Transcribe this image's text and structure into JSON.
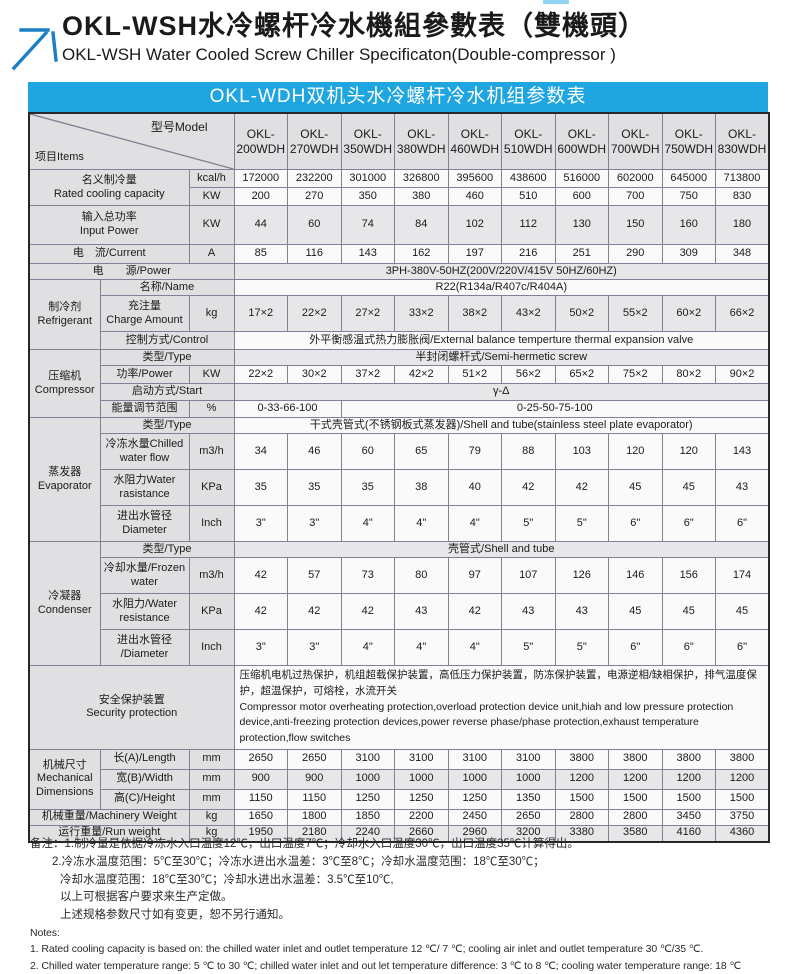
{
  "header": {
    "title_zh": "OKL-WSH水冷螺杆冷水機組參數表（雙機頭）",
    "title_en": "OKL-WSH Water Cooled Screw Chiller Specificaton(Double-compressor )"
  },
  "table": {
    "banner": "OKL-WDH双机头水冷螺杆冷水机组参数表",
    "corner": {
      "items": "项目Items",
      "model": "型号Model"
    },
    "models": [
      "OKL-\n200WDH",
      "OKL-\n270WDH",
      "OKL-\n350WDH",
      "OKL-\n380WDH",
      "OKL-\n460WDH",
      "OKL-\n510WDH",
      "OKL-\n600WDH",
      "OKL-\n700WDH",
      "OKL-\n750WDH",
      "OKL-\n830WDH"
    ],
    "cooling": {
      "label": "名义制冷量\nRated cooling capacity",
      "unit_kcal": "kcal/h",
      "unit_kw": "KW",
      "kcal": [
        172000,
        232200,
        301000,
        326800,
        395600,
        438600,
        516000,
        602000,
        645000,
        713800
      ],
      "kw": [
        200,
        270,
        350,
        380,
        460,
        510,
        600,
        700,
        750,
        830
      ]
    },
    "input_power": {
      "label": "输入总功率\nInput Power",
      "unit": "KW",
      "values": [
        44,
        60,
        74,
        84,
        102,
        112,
        130,
        150,
        160,
        180
      ]
    },
    "current": {
      "label": "电　流/Current",
      "unit": "A",
      "values": [
        85,
        116,
        143,
        162,
        197,
        216,
        251,
        290,
        309,
        348
      ]
    },
    "power_supply": {
      "label": "电　　源/Power",
      "value": "3PH-380V-50HZ(200V/220V/415V  50HZ/60HZ)"
    },
    "refrigerant": {
      "group": "制冷剂\nRefrigerant",
      "name_label": "名称/Name",
      "name_value": "R22(R134a/R407c/R404A)",
      "charge_label": "充注量\nCharge Amount",
      "charge_unit": "kg",
      "charge": [
        "17×2",
        "22×2",
        "27×2",
        "33×2",
        "38×2",
        "43×2",
        "50×2",
        "55×2",
        "60×2",
        "66×2"
      ],
      "control_label": "控制方式/Control",
      "control_value": "外平衡感温式热力膨胀阀/External balance temperture thermal expansion valve"
    },
    "compressor": {
      "group": "压缩机\nCompressor",
      "type_label": "类型/Type",
      "type_value": "半封闭螺杆式/Semi-hermetic screw",
      "power_label": "功率/Power",
      "power_unit": "KW",
      "power": [
        "22×2",
        "30×2",
        "37×2",
        "42×2",
        "51×2",
        "56×2",
        "65×2",
        "75×2",
        "80×2",
        "90×2"
      ],
      "start_label": "启动方式/Start",
      "start_value": "γ-Δ",
      "energy_label": "能量调节范围",
      "energy_unit": "%",
      "energy_value1": "0-33-66-100",
      "energy_value2": "0-25-50-75-100"
    },
    "evaporator": {
      "group": "蒸发器\nEvaporator",
      "type_label": "类型/Type",
      "type_value": "干式壳管式(不锈钢板式蒸发器)/Shell and tube(stainless steel plate evaporator)",
      "flow_label": "冷冻水量Chilled\nwater flow",
      "flow_unit": "m3/h",
      "flow": [
        34,
        46,
        60,
        65,
        79,
        88,
        103,
        120,
        120,
        143
      ],
      "resist_label": "水阻力Water\nrasistance",
      "resist_unit": "KPa",
      "resist": [
        35,
        35,
        35,
        38,
        40,
        42,
        42,
        45,
        45,
        43
      ],
      "diam_label": "进出水管径\nDiameter",
      "diam_unit": "Inch",
      "diam": [
        "3\"",
        "3\"",
        "4\"",
        "4\"",
        "4\"",
        "5\"",
        "5\"",
        "6\"",
        "6\"",
        "6\""
      ]
    },
    "condenser": {
      "group": "冷凝器\nCondenser",
      "type_label": "类型/Type",
      "type_value": "壳管式/Shell and tube",
      "flow_label": "冷却水量/Frozen\nwater",
      "flow_unit": "m3/h",
      "flow": [
        42,
        57,
        73,
        80,
        97,
        107,
        126,
        146,
        156,
        174
      ],
      "resist_label": "水阻力/Water\nresistance",
      "resist_unit": "KPa",
      "resist": [
        42,
        42,
        42,
        43,
        42,
        43,
        43,
        45,
        45,
        45
      ],
      "diam_label": "进出水管径\n/Diameter",
      "diam_unit": "Inch",
      "diam": [
        "3\"",
        "3\"",
        "4\"",
        "4\"",
        "4\"",
        "5\"",
        "5\"",
        "6\"",
        "6\"",
        "6\""
      ]
    },
    "security": {
      "label": "安全保护装置\nSecurity protection",
      "value_zh": "压缩机电机过热保护，机组超载保护装置，高低压力保护装置，防冻保护装置，电源逆相/缺相保护，排气温度保护，超温保护，可熔栓，水流开关",
      "value_en": "Compressor motor overheating protection,overload protection device unit,hiah and low pressure protection device,anti-freezing protection devices,power reverse phase/phase protection,exhaust temperature protection,flow switches"
    },
    "dimensions": {
      "group": "机械尺寸\nMechanical\nDimensions",
      "length_label": "长(A)/Length",
      "width_label": "宽(B)/Width",
      "height_label": "高(C)/Height",
      "unit": "mm",
      "length": [
        2650,
        2650,
        3100,
        3100,
        3100,
        3100,
        3800,
        3800,
        3800,
        3800
      ],
      "width": [
        900,
        900,
        1000,
        1000,
        1000,
        1000,
        1200,
        1200,
        1200,
        1200
      ],
      "height": [
        1150,
        1150,
        1250,
        1250,
        1250,
        1350,
        1500,
        1500,
        1500,
        1500
      ]
    },
    "machinery_weight": {
      "label": "机械重量/Machinery Weight",
      "unit": "kg",
      "values": [
        1650,
        1800,
        1850,
        2200,
        2450,
        2650,
        2800,
        2800,
        3450,
        3750
      ]
    },
    "run_weight": {
      "label": "运行重量/Run weight",
      "unit": "kg",
      "values": [
        1950,
        2180,
        2240,
        2660,
        2960,
        3200,
        3380,
        3580,
        4160,
        4360
      ]
    }
  },
  "notes": {
    "zh1": "备注：1.制冷量是依据冷冻水入口温度12℃，出口温度7℃；冷却水入口温度30℃，出口温度35℃计算得出。",
    "zh2": "2.冷冻水温度范围：5℃至30℃；冷冻水进出水温差：3℃至8℃；冷却水温度范围：18℃至30℃；",
    "zh3": "冷却水温度范围：18℃至30℃；冷却水进出水温差：3.5℃至10℃,",
    "zh4": "以上可根据客户要求来生产定做。",
    "zh5": "上述规格参数尺寸如有变更，恕不另行通知。",
    "en_title": "Notes:",
    "en1": "1. Rated cooling capacity is based on: the chilled water inlet and outlet temperature 12 ℃/ 7 ℃; cooling air inlet and outlet temperature 30 ℃/35 ℃.",
    "en2": "2. Chilled water temperature range: 5 ℃ to 30 ℃; chilled water inlet and out let temperature difference: 3 ℃ to 8 ℃; cooling water temperature range: 18 ℃"
  },
  "colors": {
    "banner_blue": "#1fa6e0",
    "logo_blue": "#1b7fc4"
  }
}
